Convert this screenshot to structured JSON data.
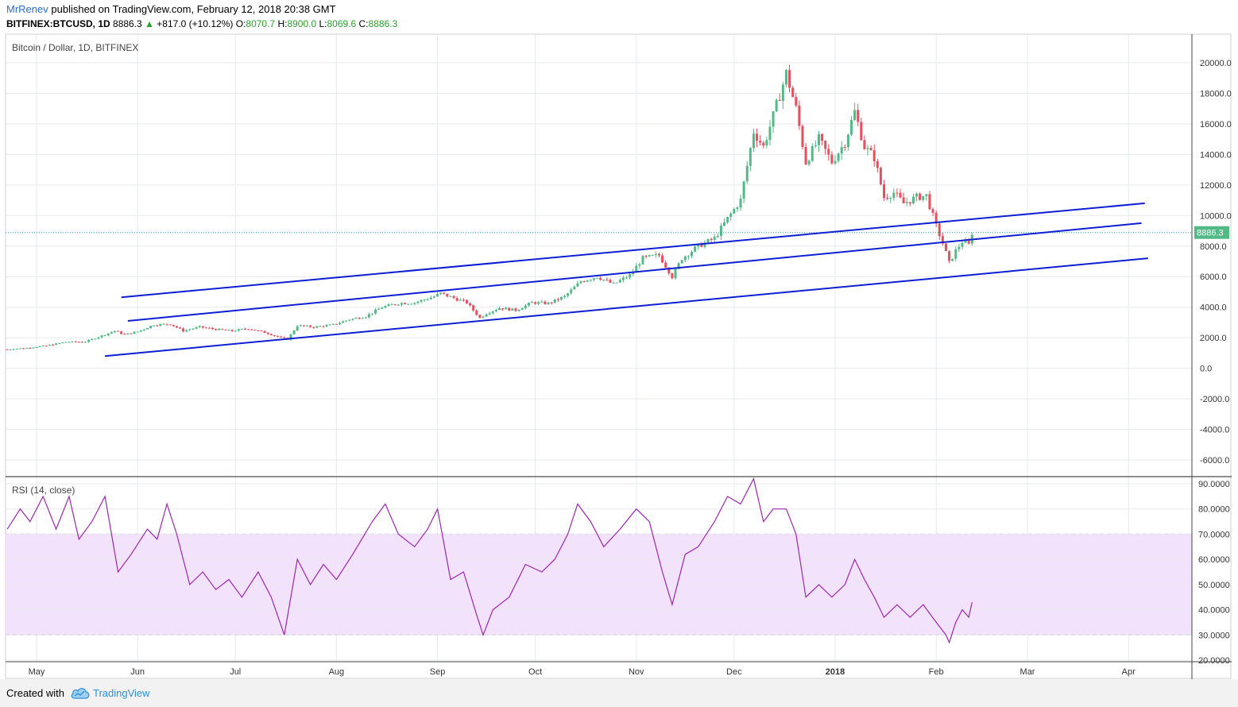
{
  "header": {
    "author": "MrRenev",
    "published_text": "published on TradingView.com, February 12, 2018 20:38 GMT",
    "symbol": "BITFINEX:BTCUSD, 1D",
    "price": "8886.3",
    "arrow": "▲",
    "change": "+817.0 (+10.12%)",
    "o_label": "O:",
    "o_value": "8070.7",
    "h_label": "H:",
    "h_value": "8900.0",
    "l_label": "L:",
    "l_value": "8069.6",
    "c_label": "C:",
    "c_value": "8886.3"
  },
  "footer": {
    "created_with": "Created with",
    "brand": "TradingView"
  },
  "colors": {
    "up": "#53b987",
    "down": "#eb4d5c",
    "rsi": "#9c27b0",
    "channel": "#0d1fd4",
    "rsi_band": "#f3e2fb",
    "price_line": "#26a69a"
  },
  "chart_data": [
    {
      "type": "candlestick",
      "title": "Bitcoin / Dollar, 1D, BITFINEX",
      "last_price_label": "8886.3",
      "last_price": 8886.3,
      "ylim": [
        -6800,
        20800
      ],
      "yticks": [
        20000,
        18000,
        16000,
        14000,
        12000,
        10000,
        8000,
        6000,
        4000,
        2000,
        0,
        -2000,
        -4000,
        -6000
      ],
      "ytick_labels": [
        "20000.0",
        "18000.0",
        "16000.0",
        "14000.0",
        "12000.0",
        "10000.0",
        "8000.0",
        "6000.0",
        "4000.0",
        "2000.0",
        "0.0",
        "-2000.0",
        "-4000.0",
        "-6000.0"
      ],
      "x_month_labels": [
        {
          "label": "May",
          "date": "2017-05-01"
        },
        {
          "label": "Jun",
          "date": "2017-06-01"
        },
        {
          "label": "Jul",
          "date": "2017-07-01"
        },
        {
          "label": "Aug",
          "date": "2017-08-01"
        },
        {
          "label": "Sep",
          "date": "2017-09-01"
        },
        {
          "label": "Oct",
          "date": "2017-10-01"
        },
        {
          "label": "Nov",
          "date": "2017-11-01"
        },
        {
          "label": "Dec",
          "date": "2017-12-01"
        },
        {
          "label": "2018",
          "date": "2018-01-01"
        },
        {
          "label": "Feb",
          "date": "2018-02-01"
        },
        {
          "label": "Mar",
          "date": "2018-03-01"
        },
        {
          "label": "Apr",
          "date": "2018-04-01"
        }
      ],
      "close_series": [
        [
          "2017-04-22",
          1240
        ],
        [
          "2017-04-28",
          1330
        ],
        [
          "2017-05-04",
          1480
        ],
        [
          "2017-05-10",
          1720
        ],
        [
          "2017-05-16",
          1740
        ],
        [
          "2017-05-20",
          2050
        ],
        [
          "2017-05-25",
          2450
        ],
        [
          "2017-05-28",
          2200
        ],
        [
          "2017-06-01",
          2400
        ],
        [
          "2017-06-06",
          2850
        ],
        [
          "2017-06-11",
          2900
        ],
        [
          "2017-06-15",
          2450
        ],
        [
          "2017-06-20",
          2700
        ],
        [
          "2017-06-25",
          2550
        ],
        [
          "2017-06-30",
          2450
        ],
        [
          "2017-07-05",
          2600
        ],
        [
          "2017-07-10",
          2350
        ],
        [
          "2017-07-15",
          2000
        ],
        [
          "2017-07-17",
          1900
        ],
        [
          "2017-07-20",
          2800
        ],
        [
          "2017-07-25",
          2700
        ],
        [
          "2017-07-31",
          2850
        ],
        [
          "2017-08-05",
          3200
        ],
        [
          "2017-08-10",
          3400
        ],
        [
          "2017-08-15",
          4000
        ],
        [
          "2017-08-20",
          4250
        ],
        [
          "2017-08-25",
          4300
        ],
        [
          "2017-08-31",
          4700
        ],
        [
          "2017-09-02",
          4900
        ],
        [
          "2017-09-06",
          4600
        ],
        [
          "2017-09-10",
          4300
        ],
        [
          "2017-09-14",
          3300
        ],
        [
          "2017-09-16",
          3600
        ],
        [
          "2017-09-20",
          3950
        ],
        [
          "2017-09-25",
          3800
        ],
        [
          "2017-09-30",
          4300
        ],
        [
          "2017-10-05",
          4250
        ],
        [
          "2017-10-10",
          4700
        ],
        [
          "2017-10-15",
          5700
        ],
        [
          "2017-10-20",
          6000
        ],
        [
          "2017-10-25",
          5500
        ],
        [
          "2017-10-30",
          6100
        ],
        [
          "2017-11-03",
          7200
        ],
        [
          "2017-11-08",
          7400
        ],
        [
          "2017-11-12",
          6000
        ],
        [
          "2017-11-15",
          7200
        ],
        [
          "2017-11-20",
          8000
        ],
        [
          "2017-11-25",
          8500
        ],
        [
          "2017-11-29",
          9800
        ],
        [
          "2017-12-03",
          11000
        ],
        [
          "2017-12-07",
          15500
        ],
        [
          "2017-12-10",
          14500
        ],
        [
          "2017-12-13",
          16500
        ],
        [
          "2017-12-17",
          19300
        ],
        [
          "2017-12-20",
          17000
        ],
        [
          "2017-12-23",
          13500
        ],
        [
          "2017-12-27",
          15000
        ],
        [
          "2017-12-31",
          13500
        ],
        [
          "2018-01-04",
          14800
        ],
        [
          "2018-01-07",
          16800
        ],
        [
          "2018-01-10",
          14500
        ],
        [
          "2018-01-13",
          13800
        ],
        [
          "2018-01-16",
          11200
        ],
        [
          "2018-01-19",
          11500
        ],
        [
          "2018-01-22",
          10800
        ],
        [
          "2018-01-26",
          11200
        ],
        [
          "2018-01-29",
          11300
        ],
        [
          "2018-02-01",
          9300
        ],
        [
          "2018-02-03",
          8200
        ],
        [
          "2018-02-05",
          6900
        ],
        [
          "2018-02-07",
          7700
        ],
        [
          "2018-02-09",
          8300
        ],
        [
          "2018-02-11",
          8070
        ],
        [
          "2018-02-12",
          8886
        ]
      ],
      "channel_lines": [
        {
          "name": "",
          "points": [
            [
              "2017-05-27",
              4650
            ],
            [
              "2018-04-06",
              10800
            ]
          ]
        },
        {
          "name": "",
          "points": [
            [
              "2017-05-29",
              3100
            ],
            [
              "2018-04-05",
              9500
            ]
          ]
        },
        {
          "name": "",
          "points": [
            [
              "2017-05-22",
              800
            ],
            [
              "2018-04-07",
              7200
            ]
          ]
        }
      ]
    },
    {
      "type": "line",
      "title": "RSI (14, close)",
      "ylim": [
        20,
        92
      ],
      "yticks": [
        90,
        80,
        70,
        60,
        50,
        40,
        30,
        20
      ],
      "ytick_labels": [
        "90.0000",
        "80.0000",
        "70.0000",
        "60.0000",
        "50.0000",
        "40.0000",
        "30.0000",
        "20.0000"
      ],
      "band": [
        30,
        70
      ],
      "series": [
        {
          "name": "",
          "points": [
            [
              "2017-04-22",
              72
            ],
            [
              "2017-04-26",
              80
            ],
            [
              "2017-04-29",
              75
            ],
            [
              "2017-05-03",
              85
            ],
            [
              "2017-05-07",
              72
            ],
            [
              "2017-05-11",
              85
            ],
            [
              "2017-05-14",
              68
            ],
            [
              "2017-05-18",
              75
            ],
            [
              "2017-05-22",
              85
            ],
            [
              "2017-05-26",
              55
            ],
            [
              "2017-05-30",
              62
            ],
            [
              "2017-06-04",
              72
            ],
            [
              "2017-06-07",
              68
            ],
            [
              "2017-06-10",
              82
            ],
            [
              "2017-06-13",
              70
            ],
            [
              "2017-06-17",
              50
            ],
            [
              "2017-06-21",
              55
            ],
            [
              "2017-06-25",
              48
            ],
            [
              "2017-06-29",
              52
            ],
            [
              "2017-07-03",
              45
            ],
            [
              "2017-07-08",
              55
            ],
            [
              "2017-07-12",
              45
            ],
            [
              "2017-07-16",
              30
            ],
            [
              "2017-07-20",
              60
            ],
            [
              "2017-07-24",
              50
            ],
            [
              "2017-07-28",
              58
            ],
            [
              "2017-08-01",
              52
            ],
            [
              "2017-08-06",
              62
            ],
            [
              "2017-08-12",
              75
            ],
            [
              "2017-08-16",
              82
            ],
            [
              "2017-08-20",
              70
            ],
            [
              "2017-08-25",
              65
            ],
            [
              "2017-08-29",
              72
            ],
            [
              "2017-09-01",
              80
            ],
            [
              "2017-09-05",
              52
            ],
            [
              "2017-09-09",
              55
            ],
            [
              "2017-09-13",
              38
            ],
            [
              "2017-09-15",
              30
            ],
            [
              "2017-09-18",
              40
            ],
            [
              "2017-09-23",
              45
            ],
            [
              "2017-09-28",
              58
            ],
            [
              "2017-10-03",
              55
            ],
            [
              "2017-10-07",
              60
            ],
            [
              "2017-10-11",
              70
            ],
            [
              "2017-10-14",
              82
            ],
            [
              "2017-10-18",
              75
            ],
            [
              "2017-10-22",
              65
            ],
            [
              "2017-10-27",
              72
            ],
            [
              "2017-11-01",
              80
            ],
            [
              "2017-11-05",
              75
            ],
            [
              "2017-11-09",
              55
            ],
            [
              "2017-11-12",
              42
            ],
            [
              "2017-11-16",
              62
            ],
            [
              "2017-11-20",
              65
            ],
            [
              "2017-11-25",
              75
            ],
            [
              "2017-11-29",
              85
            ],
            [
              "2017-12-03",
              82
            ],
            [
              "2017-12-07",
              92
            ],
            [
              "2017-12-10",
              75
            ],
            [
              "2017-12-13",
              80
            ],
            [
              "2017-12-17",
              80
            ],
            [
              "2017-12-20",
              70
            ],
            [
              "2017-12-23",
              45
            ],
            [
              "2017-12-27",
              50
            ],
            [
              "2017-12-31",
              45
            ],
            [
              "2018-01-04",
              50
            ],
            [
              "2018-01-07",
              60
            ],
            [
              "2018-01-10",
              52
            ],
            [
              "2018-01-13",
              45
            ],
            [
              "2018-01-16",
              37
            ],
            [
              "2018-01-20",
              42
            ],
            [
              "2018-01-24",
              37
            ],
            [
              "2018-01-28",
              42
            ],
            [
              "2018-02-01",
              35
            ],
            [
              "2018-02-04",
              30
            ],
            [
              "2018-02-05",
              27
            ],
            [
              "2018-02-07",
              35
            ],
            [
              "2018-02-09",
              40
            ],
            [
              "2018-02-11",
              37
            ],
            [
              "2018-02-12",
              43
            ]
          ]
        }
      ]
    }
  ]
}
